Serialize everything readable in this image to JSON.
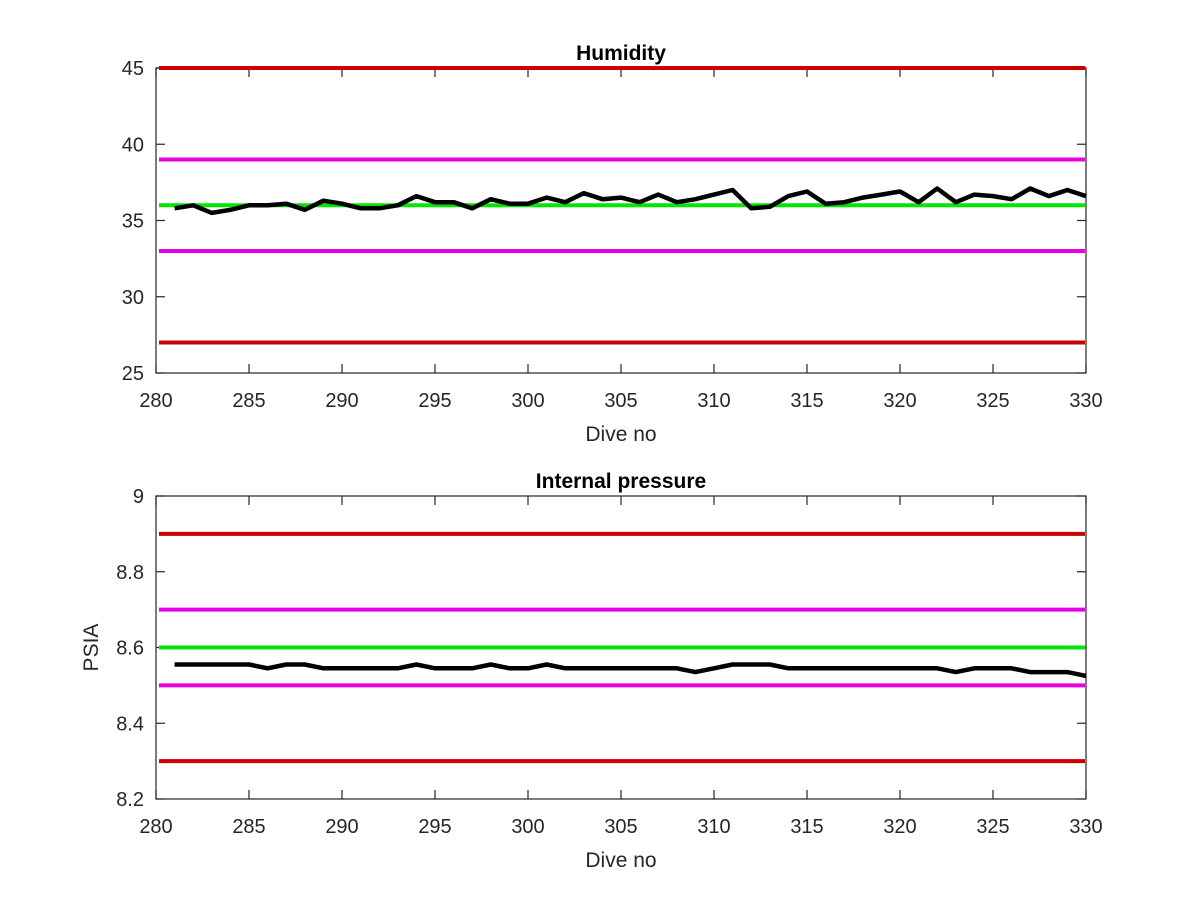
{
  "chart_data": [
    {
      "type": "line",
      "title": "Humidity",
      "xlabel": "Dive no",
      "ylabel": "",
      "xlim": [
        280,
        330
      ],
      "ylim": [
        25,
        45
      ],
      "xticks": [
        280,
        285,
        290,
        295,
        300,
        305,
        310,
        315,
        320,
        325,
        330
      ],
      "yticks": [
        25,
        30,
        35,
        40,
        45
      ],
      "grid": false,
      "reference_lines": [
        {
          "y": 45,
          "color": "#cc0000"
        },
        {
          "y": 39,
          "color": "#e600e6"
        },
        {
          "y": 36,
          "color": "#00e600"
        },
        {
          "y": 33,
          "color": "#e600e6"
        },
        {
          "y": 27,
          "color": "#cc0000"
        }
      ],
      "series": [
        {
          "color": "#000000",
          "x": [
            281,
            282,
            283,
            284,
            285,
            286,
            287,
            288,
            289,
            290,
            291,
            292,
            293,
            294,
            295,
            296,
            297,
            298,
            299,
            300,
            301,
            302,
            303,
            304,
            305,
            306,
            307,
            308,
            309,
            310,
            311,
            312,
            313,
            314,
            315,
            316,
            317,
            318,
            319,
            320,
            321,
            322,
            323,
            324,
            325,
            326,
            327,
            328,
            329,
            330
          ],
          "y": [
            35.8,
            36.0,
            35.5,
            35.7,
            36.0,
            36.0,
            36.1,
            35.7,
            36.3,
            36.1,
            35.8,
            35.8,
            36.0,
            36.6,
            36.2,
            36.2,
            35.8,
            36.4,
            36.1,
            36.1,
            36.5,
            36.2,
            36.8,
            36.4,
            36.5,
            36.2,
            36.7,
            36.2,
            36.4,
            36.7,
            37.0,
            35.8,
            35.9,
            36.6,
            36.9,
            36.1,
            36.2,
            36.5,
            36.7,
            36.9,
            36.2,
            37.1,
            36.2,
            36.7,
            36.6,
            36.4,
            37.1,
            36.6,
            37.0,
            36.6
          ]
        }
      ]
    },
    {
      "type": "line",
      "title": "Internal pressure",
      "xlabel": "Dive no",
      "ylabel": "PSIA",
      "xlim": [
        280,
        330
      ],
      "ylim": [
        8.2,
        9.0
      ],
      "xticks": [
        280,
        285,
        290,
        295,
        300,
        305,
        310,
        315,
        320,
        325,
        330
      ],
      "yticks": [
        "8.2",
        "8.4",
        "8.6",
        "8.8",
        "9"
      ],
      "grid": false,
      "reference_lines": [
        {
          "y": 8.9,
          "color": "#cc0000"
        },
        {
          "y": 8.7,
          "color": "#e600e6"
        },
        {
          "y": 8.6,
          "color": "#00e600"
        },
        {
          "y": 8.5,
          "color": "#e600e6"
        },
        {
          "y": 8.3,
          "color": "#cc0000"
        }
      ],
      "series": [
        {
          "color": "#000000",
          "x": [
            281,
            282,
            283,
            284,
            285,
            286,
            287,
            288,
            289,
            290,
            291,
            292,
            293,
            294,
            295,
            296,
            297,
            298,
            299,
            300,
            301,
            302,
            303,
            304,
            305,
            306,
            307,
            308,
            309,
            310,
            311,
            312,
            313,
            314,
            315,
            316,
            317,
            318,
            319,
            320,
            321,
            322,
            323,
            324,
            325,
            326,
            327,
            328,
            329,
            330
          ],
          "y": [
            8.555,
            8.555,
            8.555,
            8.555,
            8.555,
            8.545,
            8.555,
            8.555,
            8.545,
            8.545,
            8.545,
            8.545,
            8.545,
            8.555,
            8.545,
            8.545,
            8.545,
            8.555,
            8.545,
            8.545,
            8.555,
            8.545,
            8.545,
            8.545,
            8.545,
            8.545,
            8.545,
            8.545,
            8.535,
            8.545,
            8.555,
            8.555,
            8.555,
            8.545,
            8.545,
            8.545,
            8.545,
            8.545,
            8.545,
            8.545,
            8.545,
            8.545,
            8.535,
            8.545,
            8.545,
            8.545,
            8.535,
            8.535,
            8.535,
            8.525
          ]
        }
      ]
    }
  ]
}
